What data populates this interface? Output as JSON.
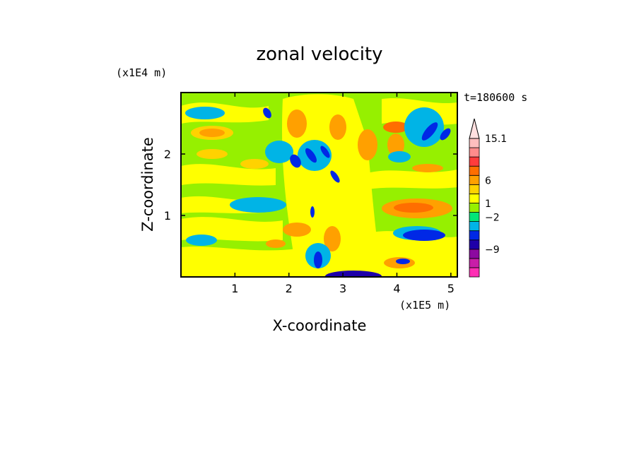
{
  "chart_data": {
    "type": "heatmap",
    "title": "zonal velocity",
    "xlabel": "X-coordinate",
    "ylabel": "Z-coordinate",
    "x_unit": "(x1E5 m)",
    "y_unit": "(x1E4 m)",
    "time_label": "t=180600 s",
    "xlim": [
      0,
      5.12
    ],
    "ylim": [
      0,
      3.0
    ],
    "x_ticks": [
      "1",
      "2",
      "3",
      "4",
      "5"
    ],
    "x_tick_values": [
      1,
      2,
      3,
      4,
      5
    ],
    "y_ticks": [
      "1",
      "2"
    ],
    "y_tick_values": [
      1,
      2
    ],
    "colorbar": {
      "levels": [
        {
          "color": "#ff2fb4"
        },
        {
          "color": "#c81ea8"
        },
        {
          "color": "#8c0aa0"
        },
        {
          "color": "#1e00a8"
        },
        {
          "color": "#0028e6"
        },
        {
          "color": "#00b4e6"
        },
        {
          "color": "#00e678"
        },
        {
          "color": "#96f000"
        },
        {
          "color": "#ffff00"
        },
        {
          "color": "#ffd200"
        },
        {
          "color": "#ffa000"
        },
        {
          "color": "#ff6e00"
        },
        {
          "color": "#ff3c3c"
        },
        {
          "color": "#ff8c8c"
        },
        {
          "color": "#ffbebe"
        }
      ],
      "labels": [
        {
          "text": "15.1",
          "value": 15.1
        },
        {
          "text": "6",
          "value": 6
        },
        {
          "text": "1",
          "value": 1
        },
        {
          "text": "−2",
          "value": -2
        },
        {
          "text": "−9",
          "value": -9
        }
      ],
      "extend_max": true
    }
  }
}
